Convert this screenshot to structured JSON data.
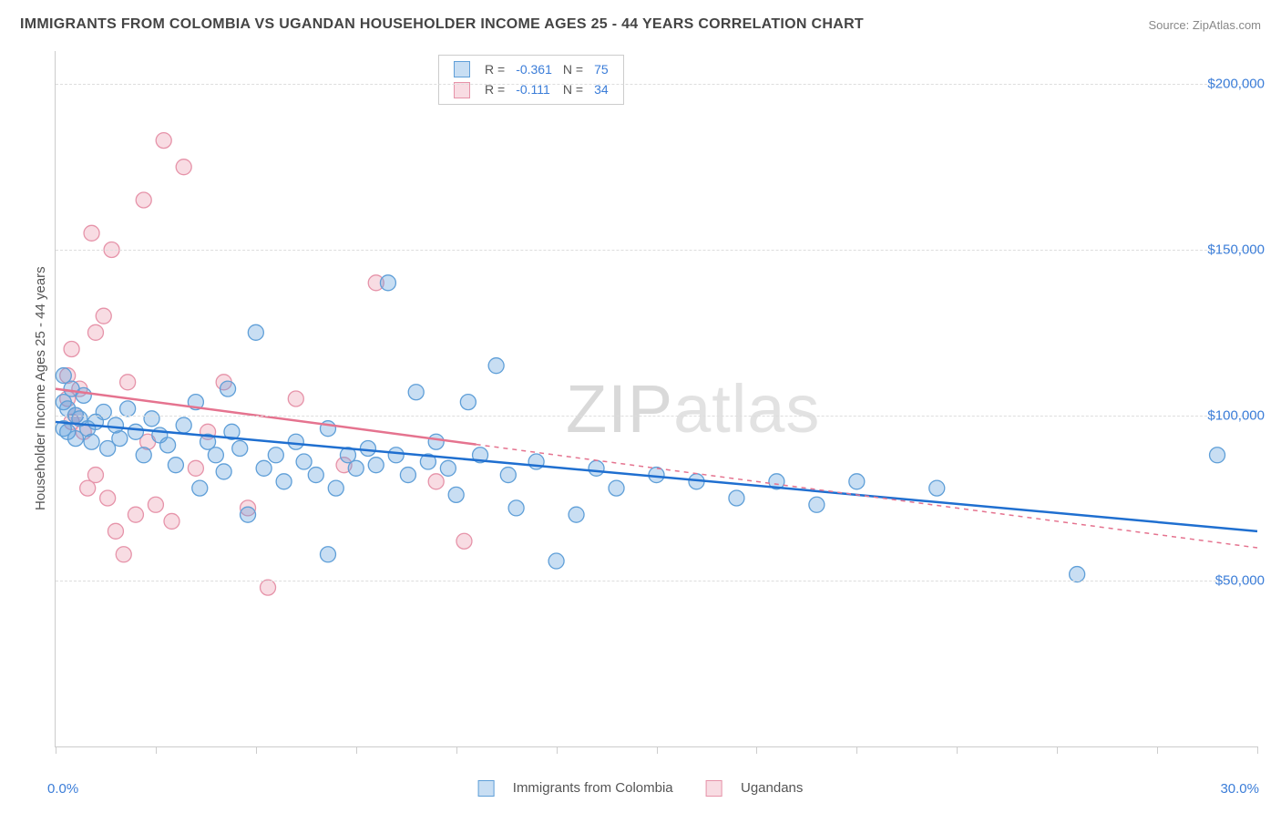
{
  "title": "IMMIGRANTS FROM COLOMBIA VS UGANDAN HOUSEHOLDER INCOME AGES 25 - 44 YEARS CORRELATION CHART",
  "source_label": "Source: ZipAtlas.com",
  "watermark": "ZIPatlas",
  "y_axis_label": "Householder Income Ages 25 - 44 years",
  "chart": {
    "type": "scatter",
    "x_min": 0.0,
    "x_max": 30.0,
    "y_min": 0,
    "y_max": 210000,
    "x_min_label": "0.0%",
    "x_max_label": "30.0%",
    "y_ticks": [
      50000,
      100000,
      150000,
      200000
    ],
    "y_tick_labels": [
      "$50,000",
      "$100,000",
      "$150,000",
      "$200,000"
    ],
    "x_tick_positions": [
      0,
      2.5,
      5,
      7.5,
      10,
      12.5,
      15,
      17.5,
      20,
      22.5,
      25,
      27.5,
      30
    ],
    "grid_color": "#dddddd",
    "axis_color": "#cccccc",
    "background": "#ffffff",
    "marker_radius": 8.5,
    "marker_stroke_width": 1.3,
    "trend_line_width": 2.5,
    "series": [
      {
        "name": "Immigrants from Colombia",
        "fill": "rgba(96,160,220,0.35)",
        "stroke": "#5f9fd8",
        "line_color": "#1f6fd0",
        "R": "-0.361",
        "N": "75",
        "trend": {
          "x1": 0.0,
          "y1": 98000,
          "x2": 30.0,
          "y2": 65000,
          "solid_until_x": 30.0
        },
        "points": [
          [
            0.2,
            96000
          ],
          [
            0.2,
            104000
          ],
          [
            0.2,
            112000
          ],
          [
            0.3,
            102000
          ],
          [
            0.3,
            95000
          ],
          [
            0.4,
            108000
          ],
          [
            0.5,
            100000
          ],
          [
            0.5,
            93000
          ],
          [
            0.6,
            99000
          ],
          [
            0.7,
            106000
          ],
          [
            0.8,
            96000
          ],
          [
            0.9,
            92000
          ],
          [
            1.0,
            98000
          ],
          [
            1.2,
            101000
          ],
          [
            1.3,
            90000
          ],
          [
            1.5,
            97000
          ],
          [
            1.6,
            93000
          ],
          [
            1.8,
            102000
          ],
          [
            2.0,
            95000
          ],
          [
            2.2,
            88000
          ],
          [
            2.4,
            99000
          ],
          [
            2.6,
            94000
          ],
          [
            2.8,
            91000
          ],
          [
            3.0,
            85000
          ],
          [
            3.2,
            97000
          ],
          [
            3.5,
            104000
          ],
          [
            3.6,
            78000
          ],
          [
            3.8,
            92000
          ],
          [
            4.0,
            88000
          ],
          [
            4.2,
            83000
          ],
          [
            4.4,
            95000
          ],
          [
            4.6,
            90000
          ],
          [
            4.8,
            70000
          ],
          [
            5.0,
            125000
          ],
          [
            5.2,
            84000
          ],
          [
            5.5,
            88000
          ],
          [
            5.7,
            80000
          ],
          [
            6.0,
            92000
          ],
          [
            6.2,
            86000
          ],
          [
            6.5,
            82000
          ],
          [
            6.8,
            96000
          ],
          [
            7.0,
            78000
          ],
          [
            7.3,
            88000
          ],
          [
            7.5,
            84000
          ],
          [
            7.8,
            90000
          ],
          [
            8.0,
            85000
          ],
          [
            8.3,
            140000
          ],
          [
            8.5,
            88000
          ],
          [
            8.8,
            82000
          ],
          [
            9.0,
            107000
          ],
          [
            9.3,
            86000
          ],
          [
            9.5,
            92000
          ],
          [
            9.8,
            84000
          ],
          [
            10.0,
            76000
          ],
          [
            10.3,
            104000
          ],
          [
            10.6,
            88000
          ],
          [
            11.0,
            115000
          ],
          [
            11.3,
            82000
          ],
          [
            11.5,
            72000
          ],
          [
            12.0,
            86000
          ],
          [
            12.5,
            56000
          ],
          [
            13.0,
            70000
          ],
          [
            13.5,
            84000
          ],
          [
            14.0,
            78000
          ],
          [
            15.0,
            82000
          ],
          [
            16.0,
            80000
          ],
          [
            17.0,
            75000
          ],
          [
            18.0,
            80000
          ],
          [
            19.0,
            73000
          ],
          [
            20.0,
            80000
          ],
          [
            22.0,
            78000
          ],
          [
            25.5,
            52000
          ],
          [
            29.0,
            88000
          ],
          [
            6.8,
            58000
          ],
          [
            4.3,
            108000
          ]
        ]
      },
      {
        "name": "Ugandans",
        "fill": "rgba(235,150,170,0.33)",
        "stroke": "#e693a9",
        "line_color": "#e5738f",
        "R": "-0.111",
        "N": "34",
        "trend": {
          "x1": 0.0,
          "y1": 108000,
          "x2": 30.0,
          "y2": 60000,
          "solid_until_x": 10.5
        },
        "points": [
          [
            0.3,
            105000
          ],
          [
            0.3,
            112000
          ],
          [
            0.4,
            98000
          ],
          [
            0.4,
            120000
          ],
          [
            0.5,
            100000
          ],
          [
            0.6,
            108000
          ],
          [
            0.7,
            95000
          ],
          [
            0.8,
            78000
          ],
          [
            0.9,
            155000
          ],
          [
            1.0,
            125000
          ],
          [
            1.0,
            82000
          ],
          [
            1.2,
            130000
          ],
          [
            1.3,
            75000
          ],
          [
            1.4,
            150000
          ],
          [
            1.5,
            65000
          ],
          [
            1.7,
            58000
          ],
          [
            1.8,
            110000
          ],
          [
            2.0,
            70000
          ],
          [
            2.2,
            165000
          ],
          [
            2.3,
            92000
          ],
          [
            2.5,
            73000
          ],
          [
            2.7,
            183000
          ],
          [
            2.9,
            68000
          ],
          [
            3.2,
            175000
          ],
          [
            3.5,
            84000
          ],
          [
            3.8,
            95000
          ],
          [
            4.2,
            110000
          ],
          [
            4.8,
            72000
          ],
          [
            5.3,
            48000
          ],
          [
            6.0,
            105000
          ],
          [
            7.2,
            85000
          ],
          [
            8.0,
            140000
          ],
          [
            9.5,
            80000
          ],
          [
            10.2,
            62000
          ]
        ]
      }
    ]
  },
  "legend_bottom": {
    "items": [
      "Immigrants from Colombia",
      "Ugandans"
    ]
  },
  "legend_top_labels": {
    "R": "R =",
    "N": "N ="
  }
}
